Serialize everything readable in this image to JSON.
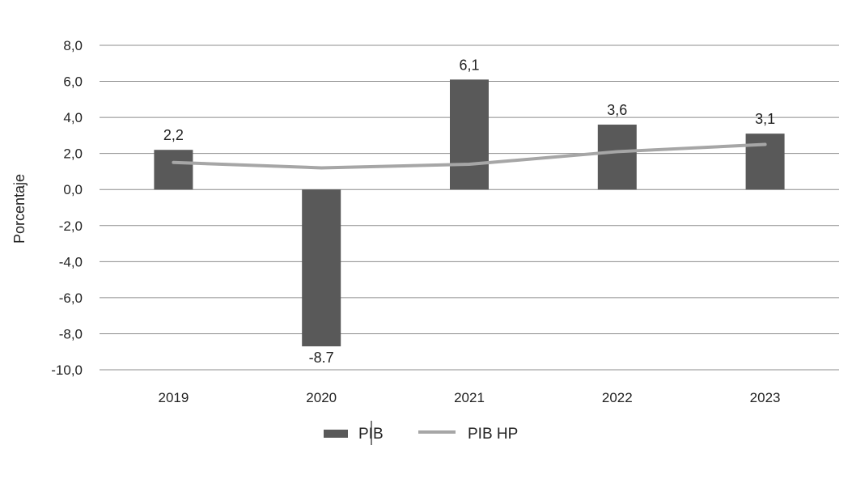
{
  "chart_data": {
    "type": "bar",
    "title": "",
    "xlabel": "",
    "ylabel": "Porcentaje",
    "categories": [
      "2019",
      "2020",
      "2021",
      "2022",
      "2023"
    ],
    "series": [
      {
        "name": "PIB",
        "kind": "bar",
        "color": "#595959",
        "values": [
          2.2,
          -8.7,
          6.1,
          3.6,
          3.1
        ],
        "data_labels": [
          "2,2",
          "-8.7",
          "6,1",
          "3,6",
          "3,1"
        ]
      },
      {
        "name": "PIB HP",
        "kind": "line",
        "color": "#a6a6a6",
        "values": [
          1.5,
          1.2,
          1.4,
          2.1,
          2.5
        ]
      }
    ],
    "ylim": [
      -10,
      8
    ],
    "yticks": [
      8,
      6,
      4,
      2,
      0,
      -2,
      -4,
      -6,
      -8,
      -10
    ],
    "ytick_labels": [
      "8,0",
      "6,0",
      "4,0",
      "2,0",
      "0,0",
      "-2,0",
      "-4,0",
      "-6,0",
      "-8,0",
      "-10,0"
    ],
    "grid": "horizontal",
    "legend_position": "bottom"
  }
}
